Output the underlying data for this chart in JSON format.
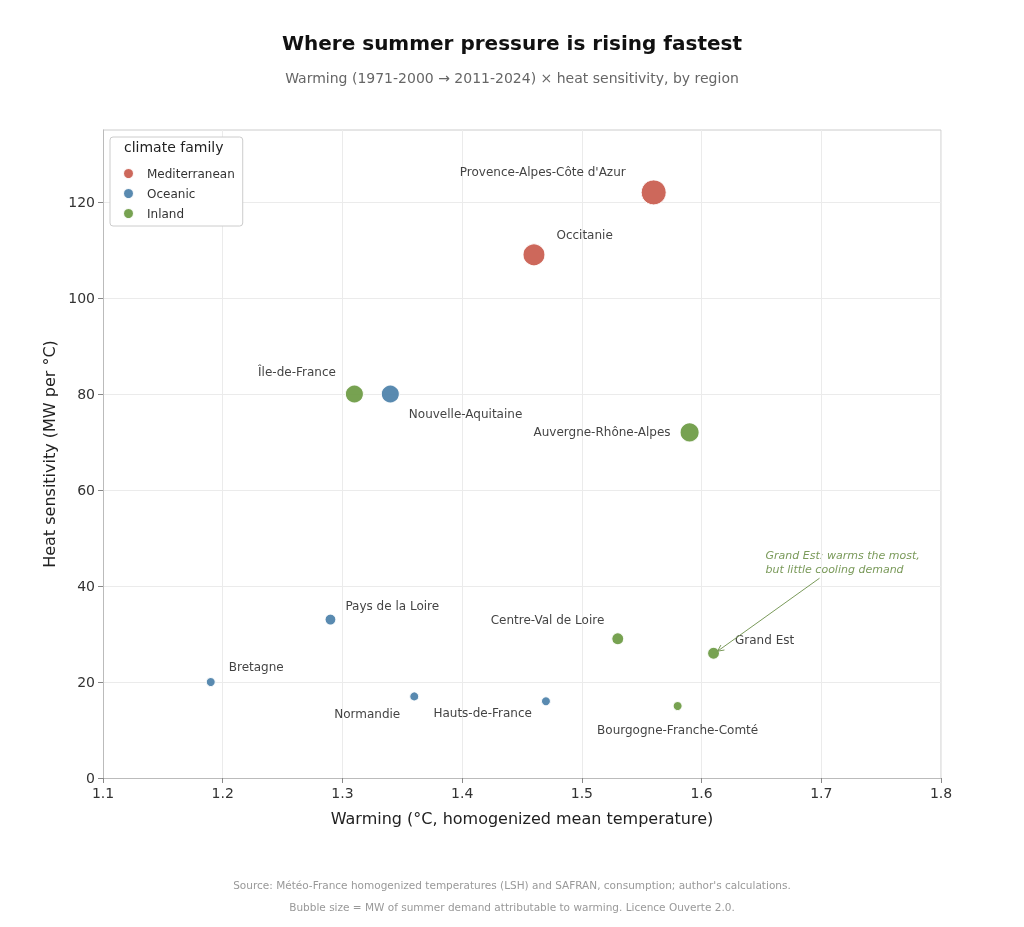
{
  "chart_data": {
    "type": "bubble",
    "title": "Where summer pressure is rising fastest",
    "subtitle": "Warming (1971-2000 → 2011-2024) × heat sensitivity, by region",
    "xlabel": "Warming (°C, homogenized mean temperature)",
    "ylabel": "Heat sensitivity (MW per °C)",
    "legend_title": "climate family",
    "legend": "top left",
    "grid": true,
    "marker": "circle",
    "xlim": [
      1.1,
      1.8
    ],
    "xticks": [
      1.1,
      1.2,
      1.3,
      1.4,
      1.5,
      1.6,
      1.7,
      1.8
    ],
    "ylim": [
      0,
      135
    ],
    "yticks": [
      0,
      20,
      40,
      60,
      80,
      100,
      120
    ],
    "series": [
      {
        "name": "Mediterranean",
        "color": "#c95b4d",
        "x": [
          1.56,
          1.46
        ],
        "values": [
          122,
          109
        ],
        "sizes": [
          1,
          0.77
        ],
        "value_labels": [
          "Provence-Alpes-Côte d'Azur",
          "Occitanie"
        ]
      },
      {
        "name": "Oceanic",
        "color": "#4b80a9",
        "x": [
          1.34,
          1.29,
          1.19,
          1.36,
          1.47
        ],
        "values": [
          80,
          33,
          20,
          17,
          16
        ],
        "sizes": [
          0.52,
          0.19,
          0.13,
          0.13,
          0.13
        ],
        "value_labels": [
          "Nouvelle-Aquitaine",
          "Pays de la Loire",
          "Bretagne",
          "Normandie",
          "Hauts-de-France"
        ]
      },
      {
        "name": "Inland",
        "color": "#6b9a42",
        "x": [
          1.31,
          1.59,
          1.53,
          1.61,
          1.58
        ],
        "values": [
          80,
          72,
          29,
          26,
          15
        ],
        "sizes": [
          0.52,
          0.58,
          0.23,
          0.23,
          0.13
        ],
        "value_labels": [
          "Île-de-France",
          "Auvergne-Rhône-Alpes",
          "Centre-Val de Loire",
          "Grand Est",
          "Bourgogne-Franche-Comté"
        ]
      }
    ],
    "annotations": [
      {
        "text": "Grand Est: warms the most,\nbut little cooling demand",
        "x": 1.61,
        "y": 26
      },
      "Source: Météo-France homogenized temperatures (LSH) and SAFRAN, consumption; author's calculations.",
      "Bubble size = MW of summer demand attributable to warming. Licence Ouverte 2.0."
    ]
  }
}
